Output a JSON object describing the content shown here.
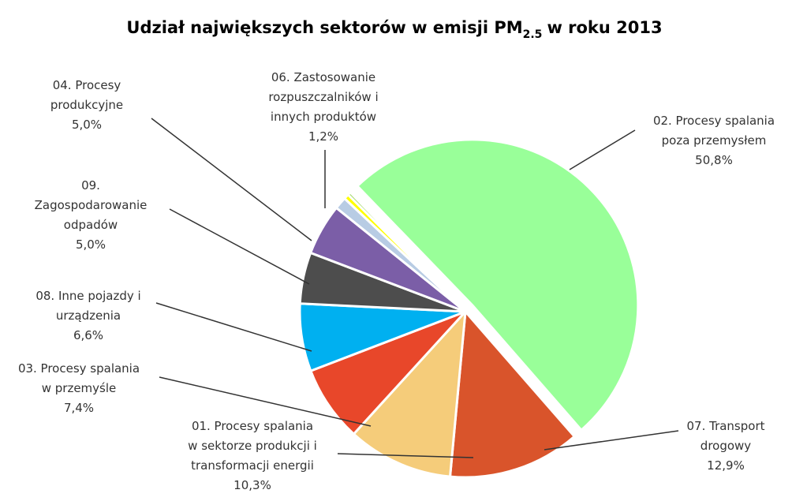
{
  "chart_data": {
    "type": "pie",
    "title": {
      "main": "Udział największych sektorów w emisji PM",
      "sub": "2.5",
      "tail": "w roku 2013"
    },
    "categories": [
      [
        "02. Procesy spalania",
        "poza przemysłem"
      ],
      [
        "07. Transport",
        "drogowy"
      ],
      [
        "01. Procesy spalania",
        "w sektorze produkcji i",
        "transformacji energii"
      ],
      [
        "03. Procesy spalania",
        "w przemyśle"
      ],
      [
        "08. Inne pojazdy i",
        "urządzenia"
      ],
      [
        "09.",
        "Zagospodarowanie",
        "odpadów"
      ],
      [
        "04. Procesy",
        "produkcyjne"
      ],
      [
        "06. Zastosowanie",
        "rozpuszczalników i",
        "innych produktów"
      ],
      null,
      null
    ],
    "values": [
      50.8,
      12.9,
      10.3,
      7.4,
      6.6,
      5.0,
      5.0,
      1.2,
      0.5,
      0.3
    ],
    "value_labels": [
      "50,8%",
      "12,9%",
      "10,3%",
      "7,4%",
      "6,6%",
      "5,0%",
      "5,0%",
      "1,2%",
      null,
      null
    ],
    "colors": [
      "#99ff99",
      "#d9542b",
      "#f5cc7a",
      "#e8472a",
      "#00b0f0",
      "#4d4d4d",
      "#7b5ea7",
      "#b8cce4",
      "#ffff00",
      "#92d050"
    ]
  }
}
